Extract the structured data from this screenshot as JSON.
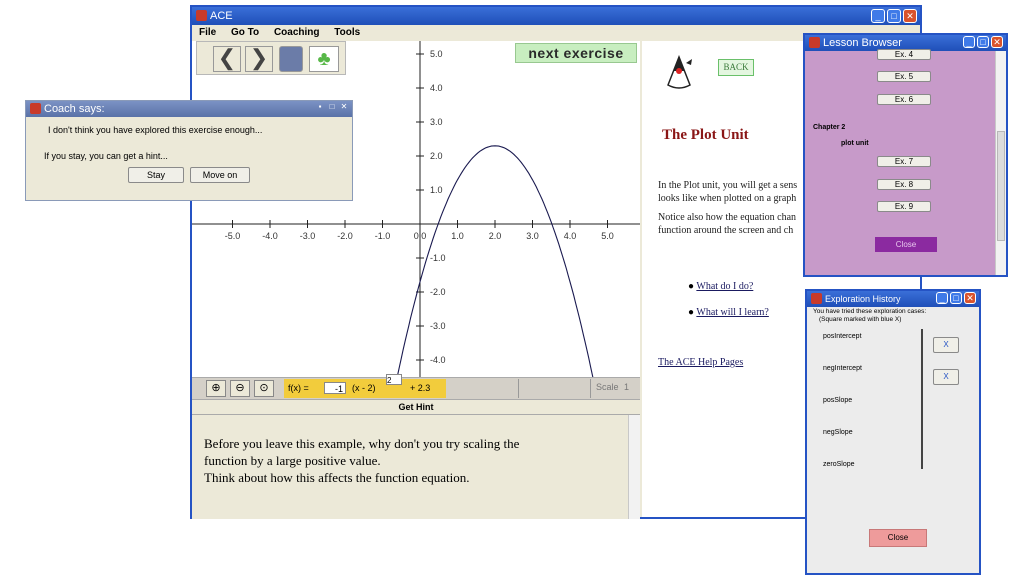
{
  "main_window": {
    "title": "ACE",
    "menu": [
      "File",
      "Go To",
      "Coaching",
      "Tools"
    ],
    "next_exercise": "next exercise",
    "graph": {
      "x_ticks": [
        "-5.0",
        "-4.0",
        "-3.0",
        "-2.0",
        "-1.0",
        "0.0",
        "1.0",
        "2.0",
        "3.0",
        "4.0",
        "5.0"
      ],
      "y_ticks": [
        "5.0",
        "4.0",
        "3.0",
        "2.0",
        "1.0",
        "-1.0",
        "-2.0",
        "-3.0",
        "-4.0"
      ],
      "curve": {
        "a": -1,
        "h": 2,
        "k": 2.3,
        "x_range": [
          -1,
          5
        ]
      }
    },
    "equation": {
      "prefix": "f(x) =",
      "coef": "-1",
      "term": "(x - 2)",
      "exponent": "2",
      "suffix": "+ 2.3"
    },
    "scale_label": "Scale",
    "scale_value": "1",
    "get_hint": "Get Hint",
    "hint_text": [
      "Before you leave this example, why don't you try scaling the",
      "function by a large positive value.",
      "Think about how this affects the function equation."
    ],
    "right_panel": {
      "back": "BACK",
      "heading": "The Plot Unit",
      "para1": [
        "In the Plot unit, you will get a sens",
        "looks like when plotted on a graph"
      ],
      "para2": [
        "Notice also how the equation chan",
        "function around the screen and ch"
      ],
      "link1": "What do I do?",
      "link2": "What will I learn?",
      "help_link": "The ACE Help Pages"
    }
  },
  "coach_dialog": {
    "title": "Coach says:",
    "line1": "I don't think you have explored this exercise enough...",
    "line2": "If you stay, you can get a hint...",
    "stay": "Stay",
    "move_on": "Move on"
  },
  "lesson_browser": {
    "title": "Lesson Browser",
    "items_top": [
      "Ex. 4",
      "Ex. 5",
      "Ex. 6"
    ],
    "chapter": "Chapter 2",
    "unit": "plot unit",
    "items_bottom": [
      "Ex. 7",
      "Ex. 8",
      "Ex. 9"
    ],
    "close": "Close"
  },
  "exploration_history": {
    "title": "Exploration History",
    "note1": "You have tried these exploration cases:",
    "note2": "(Square marked with blue X)",
    "cases": [
      "posIntercept",
      "negIntercept",
      "posSlope",
      "negSlope",
      "zeroSlope"
    ],
    "mark": "X",
    "close": "Close"
  },
  "colors": {
    "title_blue": "#2553c4",
    "lesson_bg": "#c79ac9",
    "next_green": "#c8eec0",
    "equation_yellow": "#f2cc3c",
    "close_red": "#ee9b9b"
  }
}
